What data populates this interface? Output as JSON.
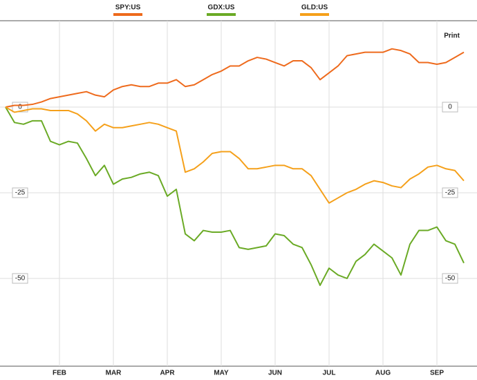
{
  "print_label": "Print",
  "chart_data": {
    "type": "line",
    "categories": [
      null,
      null,
      null,
      null,
      null,
      null,
      "FEB",
      null,
      null,
      null,
      null,
      null,
      "MAR",
      null,
      null,
      null,
      null,
      null,
      "APR",
      null,
      null,
      null,
      null,
      null,
      "MAY",
      null,
      null,
      null,
      null,
      null,
      "JUN",
      null,
      null,
      null,
      null,
      null,
      "JUL",
      null,
      null,
      null,
      null,
      null,
      "AUG",
      null,
      null,
      null,
      null,
      null,
      "SEP",
      null,
      null,
      null
    ],
    "series": [
      {
        "name": "SPY:US",
        "color": "#ee6a1c",
        "values": [
          0,
          0.5,
          0.5,
          0.8,
          1.5,
          2.5,
          3,
          3.5,
          4,
          4.5,
          3.5,
          3,
          5,
          6,
          6.5,
          6,
          6,
          7,
          7,
          8,
          6,
          6.5,
          8,
          9.5,
          10.5,
          12,
          12,
          13.5,
          14.5,
          14,
          13,
          12,
          13.5,
          13.5,
          11.5,
          8,
          10,
          12,
          15,
          15.5,
          16,
          16,
          16,
          17,
          16.5,
          15.5,
          13,
          13,
          12.5,
          13,
          14.5,
          16
        ]
      },
      {
        "name": "GDX:US",
        "color": "#6aaa25",
        "values": [
          0,
          -4.5,
          -5,
          -4,
          -4,
          -10,
          -11,
          -10,
          -10.5,
          -15,
          -20,
          -17,
          -22.5,
          -21,
          -20.5,
          -19.5,
          -19,
          -20,
          -26,
          -24,
          -37,
          -39,
          -36,
          -36.5,
          -36.5,
          -36,
          -41,
          -41.5,
          -41,
          -40.5,
          -37,
          -37.5,
          -40,
          -41,
          -46,
          -52,
          -47,
          -49,
          -50,
          -45,
          -43,
          -40,
          -42,
          -44,
          -49,
          -40,
          -36,
          -36,
          -35,
          -39,
          -40,
          -45.5
        ]
      },
      {
        "name": "GLD:US",
        "color": "#f5a01a",
        "values": [
          0,
          -1.5,
          -1,
          -0.5,
          -0.5,
          -1,
          -1,
          -1,
          -2,
          -4,
          -7,
          -5,
          -6,
          -6,
          -5.5,
          -5,
          -4.5,
          -5,
          -6,
          -7,
          -19,
          -18,
          -16,
          -13.5,
          -13,
          -13,
          -15,
          -18,
          -18,
          -17.5,
          -17,
          -17,
          -18,
          -18,
          -20,
          -24,
          -28,
          -26.5,
          -25,
          -24,
          -22.5,
          -21.5,
          -22,
          -23,
          -23.5,
          -21,
          -19.5,
          -17.5,
          -17,
          -18,
          -18.5,
          -21.5
        ]
      }
    ],
    "ylim": [
      -75,
      25
    ],
    "yticks": [
      0,
      -25,
      -50
    ],
    "grid": true,
    "legend": "top"
  }
}
